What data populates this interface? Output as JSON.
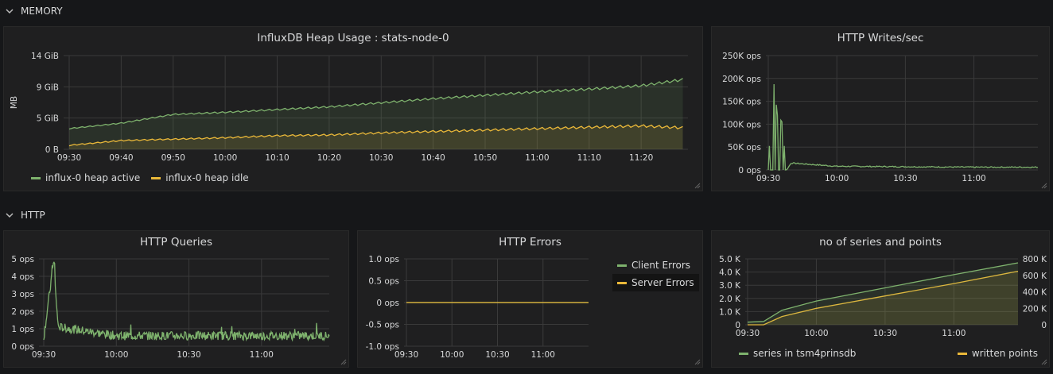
{
  "rows": {
    "memory": "MEMORY",
    "http": "HTTP"
  },
  "colors": {
    "green": "#7eb26d",
    "yellow": "#eab839",
    "grid": "#3a3a3a",
    "axis_text": "#d8d9da"
  },
  "charts": {
    "heap": {
      "title": "InfluxDB Heap Usage : stats-node-0",
      "ylabel": "MB",
      "yticks": [
        "14 GiB",
        "9 GiB",
        "5 GiB",
        "0 B"
      ],
      "xticks": [
        "09:30",
        "09:40",
        "09:50",
        "10:00",
        "10:10",
        "10:20",
        "10:30",
        "10:40",
        "10:50",
        "11:00",
        "11:10",
        "11:20"
      ],
      "legend": [
        "influx-0 heap active",
        "influx-0 heap idle"
      ]
    },
    "writes": {
      "title": "HTTP Writes/sec",
      "yticks": [
        "250K ops",
        "200K ops",
        "150K ops",
        "100K ops",
        "50K ops",
        "0 ops"
      ],
      "xticks": [
        "09:30",
        "10:00",
        "10:30",
        "11:00"
      ]
    },
    "queries": {
      "title": "HTTP Queries",
      "yticks": [
        "5 ops",
        "4 ops",
        "3 ops",
        "2 ops",
        "1 ops",
        "0 ops"
      ],
      "xticks": [
        "09:30",
        "10:00",
        "10:30",
        "11:00"
      ]
    },
    "errors": {
      "title": "HTTP Errors",
      "yticks": [
        "1.0 ops",
        "0.5 ops",
        "0 ops",
        "-0.5 ops",
        "-1.0 ops"
      ],
      "xticks": [
        "09:30",
        "10:00",
        "10:30",
        "11:00"
      ],
      "legend": [
        "Client Errors",
        "Server Errors"
      ]
    },
    "series": {
      "title": "no of series and points",
      "yticks_left": [
        "5.0 K",
        "4.0 K",
        "3.0 K",
        "2.0 K",
        "1.0 K",
        "0"
      ],
      "yticks_right": [
        "800 K",
        "600 K",
        "400 K",
        "200 K",
        "0"
      ],
      "xticks": [
        "09:30",
        "10:00",
        "10:30",
        "11:00"
      ],
      "legend": [
        "series in tsm4prinsdb",
        "written points"
      ]
    }
  },
  "chart_data": [
    {
      "type": "area",
      "title": "InfluxDB Heap Usage : stats-node-0",
      "ylabel": "MB",
      "x": [
        "09:30",
        "09:40",
        "09:50",
        "10:00",
        "10:10",
        "10:20",
        "10:30",
        "10:40",
        "10:50",
        "11:00",
        "11:10",
        "11:20",
        "11:28"
      ],
      "ylim_gib": [
        0,
        14
      ],
      "series": [
        {
          "name": "influx-0 heap active",
          "values": [
            3.2,
            4.0,
            5.3,
            5.6,
            6.0,
            6.4,
            7.0,
            7.6,
            8.1,
            8.6,
            9.0,
            9.5,
            10.4
          ]
        },
        {
          "name": "influx-0 heap idle",
          "values": [
            0.7,
            1.4,
            1.6,
            1.8,
            2.1,
            2.2,
            2.5,
            2.7,
            2.9,
            3.1,
            3.3,
            3.5,
            3.2
          ]
        }
      ]
    },
    {
      "type": "line",
      "title": "HTTP Writes/sec",
      "x": [
        "09:30",
        "09:32",
        "09:34",
        "09:36",
        "09:38",
        "09:40",
        "10:00",
        "10:30",
        "11:00",
        "11:28"
      ],
      "ylim": [
        0,
        250000
      ],
      "series": [
        {
          "name": "writes",
          "values": [
            0,
            210000,
            120000,
            105000,
            0,
            15000,
            8000,
            7000,
            6000,
            6000
          ]
        }
      ]
    },
    {
      "type": "line",
      "title": "HTTP Queries",
      "x": [
        "09:30",
        "09:34",
        "09:36",
        "10:00",
        "10:30",
        "11:00",
        "11:28"
      ],
      "ylim": [
        0,
        5
      ],
      "series": [
        {
          "name": "queries",
          "values": [
            0.5,
            4.7,
            1.1,
            0.6,
            0.6,
            0.6,
            0.6
          ]
        }
      ]
    },
    {
      "type": "line",
      "title": "HTTP Errors",
      "x": [
        "09:30",
        "10:00",
        "10:30",
        "11:00",
        "11:30"
      ],
      "ylim": [
        -1.0,
        1.0
      ],
      "series": [
        {
          "name": "Client Errors",
          "values": [
            0,
            0,
            0,
            0,
            0
          ]
        },
        {
          "name": "Server Errors",
          "values": [
            0,
            0,
            0,
            0,
            0
          ]
        }
      ]
    },
    {
      "type": "area",
      "title": "no of series and points",
      "x": [
        "09:30",
        "09:37",
        "09:45",
        "10:00",
        "10:30",
        "11:00",
        "11:28"
      ],
      "ylim_left": [
        0,
        5000
      ],
      "ylim_right": [
        0,
        800000
      ],
      "series": [
        {
          "name": "series in tsm4prinsdb",
          "axis": "left",
          "values": [
            200,
            250,
            1100,
            1800,
            2800,
            3800,
            4700
          ]
        },
        {
          "name": "written points",
          "axis": "right",
          "values": [
            0,
            0,
            100000,
            200000,
            350000,
            500000,
            650000
          ]
        }
      ]
    }
  ]
}
